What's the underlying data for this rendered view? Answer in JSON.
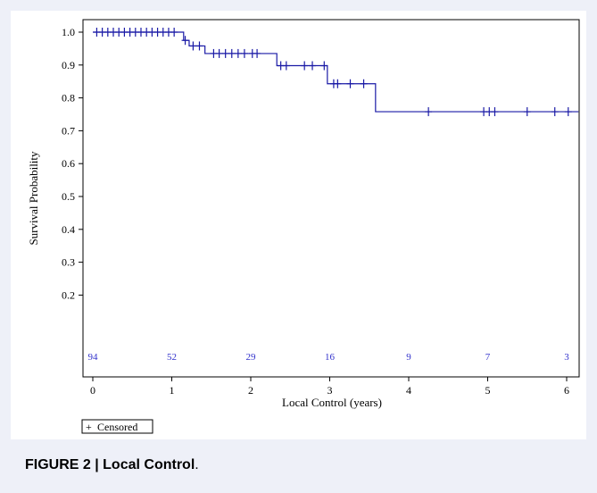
{
  "caption": {
    "figure_label": "FIGURE 2 | Local Control",
    "trailing": "."
  },
  "legend": {
    "symbol": "+",
    "label": "Censored"
  },
  "colors": {
    "curve": "#1a1aa6",
    "risk_text": "#3333cc",
    "background": "#eef0f8"
  },
  "chart_data": {
    "type": "line",
    "xlabel": "Local Control (years)",
    "ylabel": "Survival Probability",
    "xlim": [
      0,
      6.15
    ],
    "ylim": [
      0.0,
      1.03
    ],
    "x_ticks": [
      0,
      1,
      2,
      3,
      4,
      5,
      6
    ],
    "y_ticks": [
      0.2,
      0.3,
      0.4,
      0.5,
      0.6,
      0.7,
      0.8,
      0.9,
      1.0
    ],
    "y_tick_labels": [
      "0.2",
      "0.3",
      "0.4",
      "0.5",
      "0.6",
      "0.7",
      "0.8",
      "0.9",
      "1.0"
    ],
    "step_curve": [
      [
        0.0,
        1.0
      ],
      [
        1.15,
        0.975
      ],
      [
        1.22,
        0.958
      ],
      [
        1.42,
        0.935
      ],
      [
        2.33,
        0.898
      ],
      [
        2.97,
        0.843
      ],
      [
        3.58,
        0.758
      ],
      [
        6.15,
        0.758
      ]
    ],
    "censored": [
      [
        0.05,
        1.0
      ],
      [
        0.12,
        1.0
      ],
      [
        0.19,
        1.0
      ],
      [
        0.26,
        1.0
      ],
      [
        0.33,
        1.0
      ],
      [
        0.4,
        1.0
      ],
      [
        0.47,
        1.0
      ],
      [
        0.54,
        1.0
      ],
      [
        0.61,
        1.0
      ],
      [
        0.68,
        1.0
      ],
      [
        0.75,
        1.0
      ],
      [
        0.82,
        1.0
      ],
      [
        0.89,
        1.0
      ],
      [
        0.96,
        1.0
      ],
      [
        1.03,
        1.0
      ],
      [
        1.17,
        0.975
      ],
      [
        1.27,
        0.958
      ],
      [
        1.35,
        0.958
      ],
      [
        1.53,
        0.935
      ],
      [
        1.6,
        0.935
      ],
      [
        1.68,
        0.935
      ],
      [
        1.76,
        0.935
      ],
      [
        1.84,
        0.935
      ],
      [
        1.92,
        0.935
      ],
      [
        2.02,
        0.935
      ],
      [
        2.08,
        0.935
      ],
      [
        2.38,
        0.898
      ],
      [
        2.45,
        0.898
      ],
      [
        2.68,
        0.898
      ],
      [
        2.78,
        0.898
      ],
      [
        2.93,
        0.898
      ],
      [
        3.05,
        0.843
      ],
      [
        3.1,
        0.843
      ],
      [
        3.26,
        0.843
      ],
      [
        3.43,
        0.843
      ],
      [
        4.25,
        0.758
      ],
      [
        4.95,
        0.758
      ],
      [
        5.02,
        0.758
      ],
      [
        5.09,
        0.758
      ],
      [
        5.5,
        0.758
      ],
      [
        5.85,
        0.758
      ],
      [
        6.02,
        0.758
      ]
    ],
    "number_at_risk": [
      {
        "x": 0,
        "label": "94"
      },
      {
        "x": 1,
        "label": "52"
      },
      {
        "x": 2,
        "label": "29"
      },
      {
        "x": 3,
        "label": "16"
      },
      {
        "x": 4,
        "label": "9"
      },
      {
        "x": 5,
        "label": "7"
      },
      {
        "x": 6,
        "label": "3"
      }
    ]
  }
}
